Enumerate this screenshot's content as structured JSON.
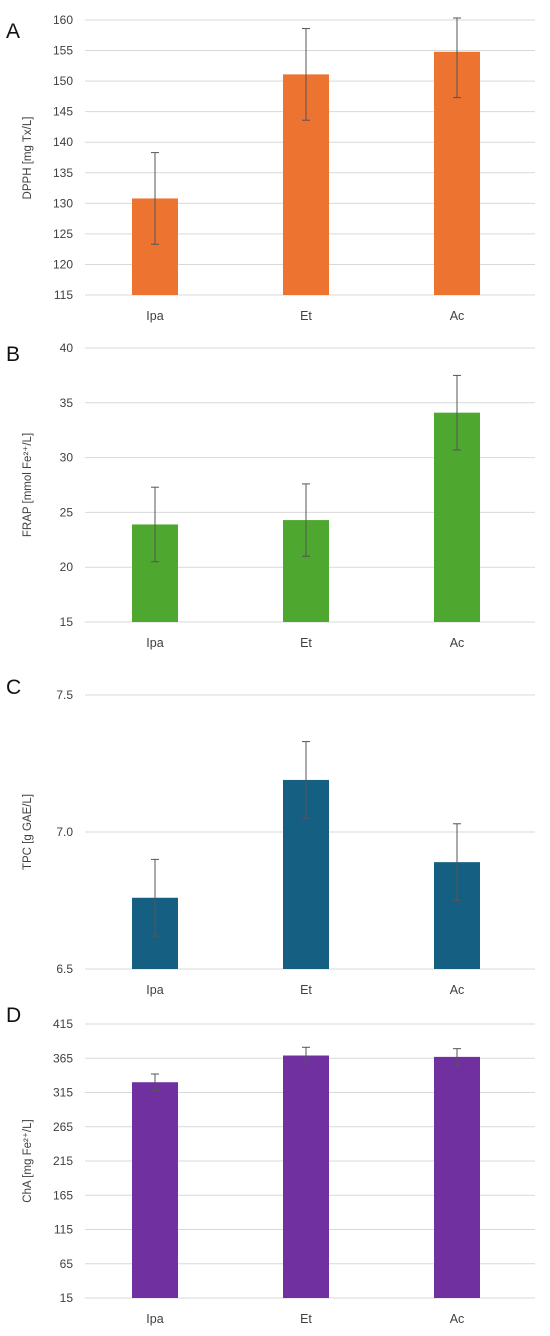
{
  "chart_data": [
    {
      "panel": "A",
      "type": "bar",
      "categories": [
        "Ipa",
        "Et",
        "Ac"
      ],
      "values": [
        130.8,
        151.1,
        154.8
      ],
      "errors": [
        7.5,
        7.5,
        7.5
      ],
      "color": "#ED7331",
      "ylabel": "DPPH [mg Tx/L]",
      "ylim": [
        115,
        160
      ],
      "yticks": [
        "115",
        "120",
        "125",
        "130",
        "135",
        "140",
        "145",
        "150",
        "155",
        "160"
      ],
      "grid": true
    },
    {
      "panel": "B",
      "type": "bar",
      "categories": [
        "Ipa",
        "Et",
        "Ac"
      ],
      "values": [
        23.9,
        24.3,
        34.1
      ],
      "errors": [
        3.4,
        3.3,
        3.4
      ],
      "color": "#4EA72E",
      "ylabel": "FRAP [mmol Fe²⁺/L]",
      "ylim": [
        15,
        40
      ],
      "yticks": [
        "15",
        "20",
        "25",
        "30",
        "35",
        "40"
      ],
      "grid": true
    },
    {
      "panel": "C",
      "type": "bar",
      "categories": [
        "Ipa",
        "Et",
        "Ac"
      ],
      "values": [
        6.76,
        7.19,
        6.89
      ],
      "errors": [
        0.14,
        0.14,
        0.14
      ],
      "color": "#156082",
      "ylabel": "TPC [g GAE/L]",
      "ylim": [
        6.5,
        7.5
      ],
      "yticks": [
        "6.5",
        "7.0",
        "7.5"
      ],
      "grid": true
    },
    {
      "panel": "D",
      "type": "bar",
      "categories": [
        "Ipa",
        "Et",
        "Ac"
      ],
      "values": [
        330,
        369,
        367
      ],
      "errors": [
        12,
        12,
        12
      ],
      "color": "#7030A0",
      "ylabel": "ChA [mg Fe²⁺/L]",
      "ylim": [
        15,
        415
      ],
      "yticks": [
        "15",
        "65",
        "115",
        "165",
        "215",
        "265",
        "315",
        "365",
        "415"
      ],
      "grid": true
    }
  ]
}
